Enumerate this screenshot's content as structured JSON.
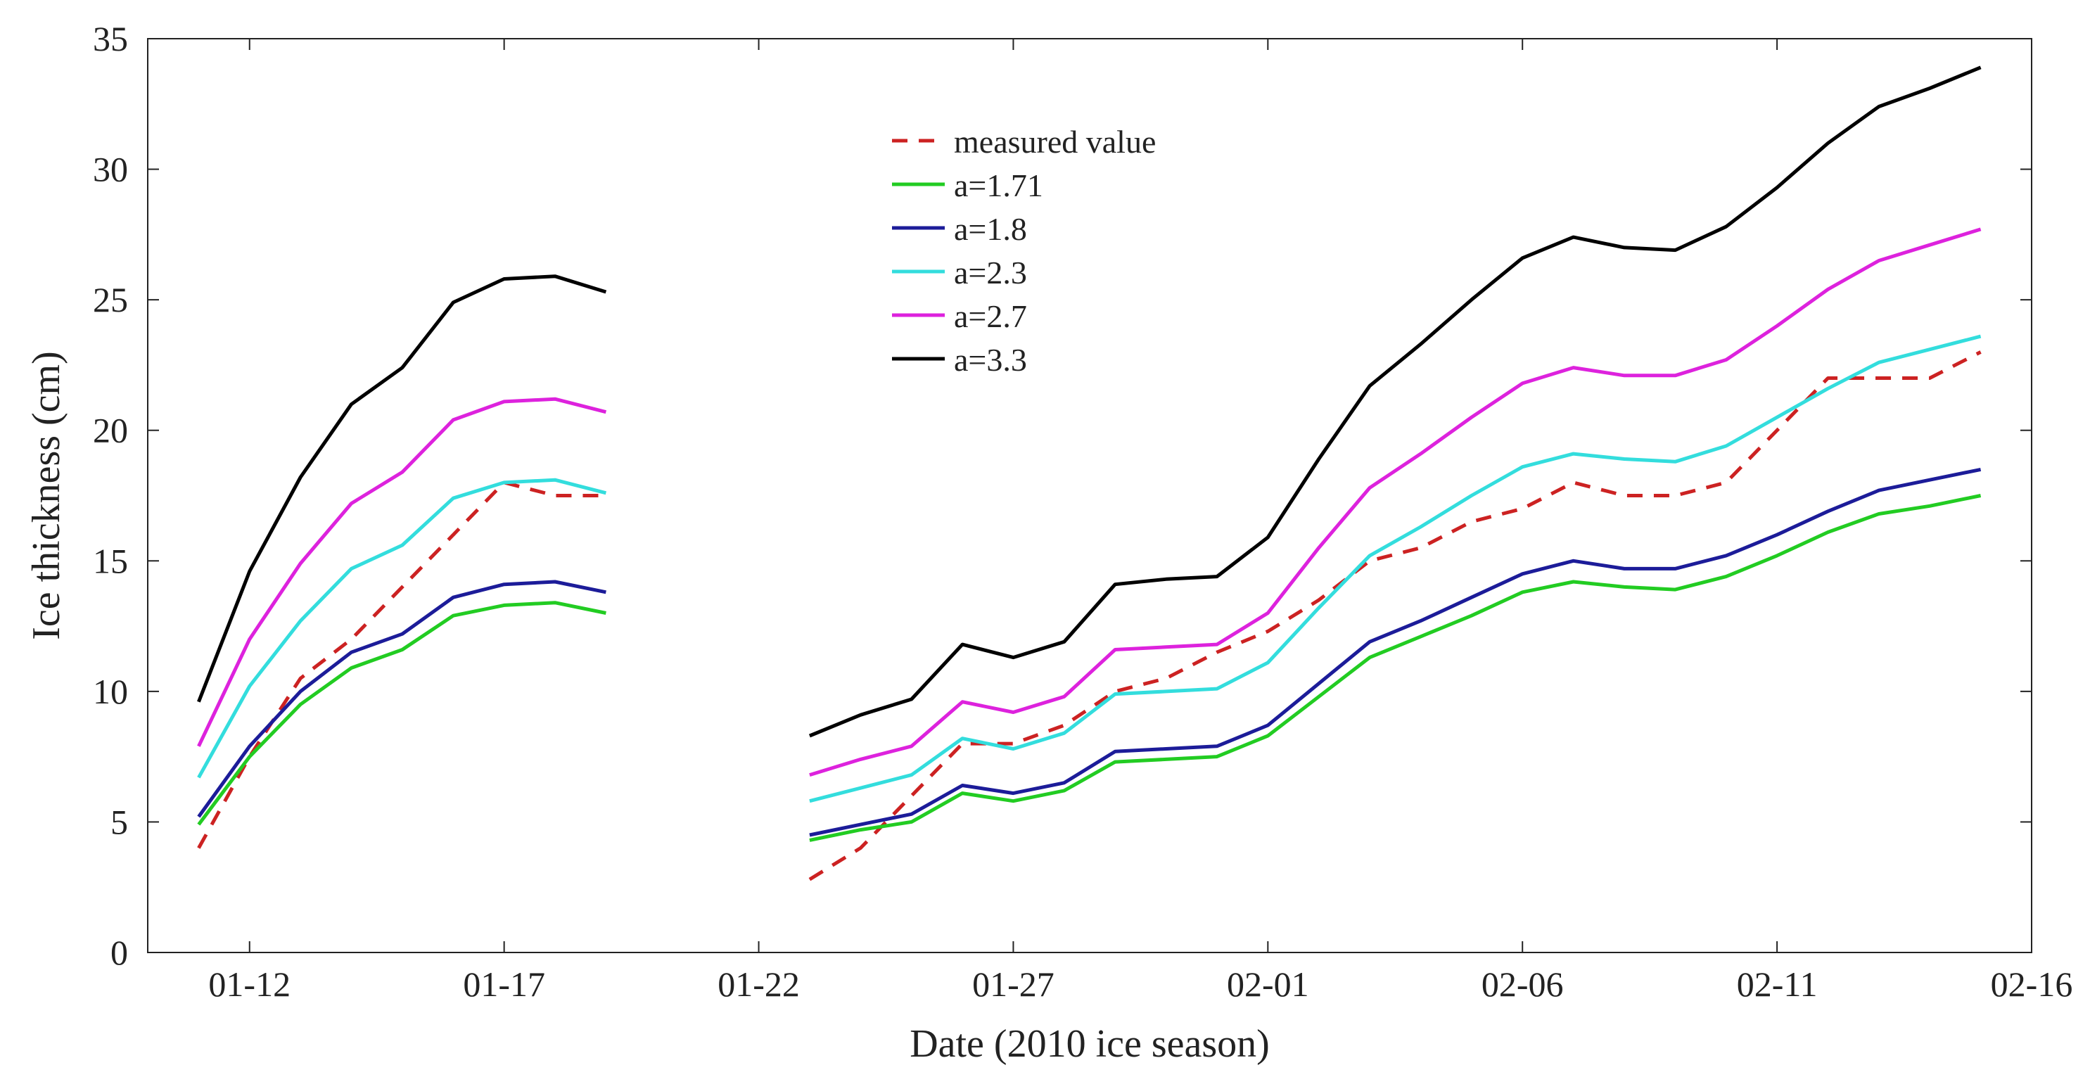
{
  "chart_data": {
    "type": "line",
    "xlabel": "Date (2010 ice season)",
    "ylabel": "Ice thickness (cm)",
    "x_ticks": [
      "01-12",
      "01-17",
      "01-22",
      "01-27",
      "02-01",
      "02-06",
      "02-11",
      "02-16"
    ],
    "y_ticks": [
      "0",
      "5",
      "10",
      "15",
      "20",
      "25",
      "30",
      "35"
    ],
    "xlim": [
      "2010-01-10",
      "2010-02-16"
    ],
    "ylim": [
      0,
      35
    ],
    "grid": false,
    "legend_position": "top-center",
    "series": [
      {
        "name": "measured value",
        "color": "#cc2222",
        "dashed": true,
        "segments": [
          {
            "x": [
              "2010-01-11",
              "2010-01-12",
              "2010-01-13",
              "2010-01-14",
              "2010-01-15",
              "2010-01-16",
              "2010-01-17",
              "2010-01-18",
              "2010-01-19"
            ],
            "y": [
              4.0,
              7.5,
              10.5,
              12.0,
              14.0,
              16.0,
              18.0,
              17.5,
              17.5
            ]
          },
          {
            "x": [
              "2010-01-23",
              "2010-01-24",
              "2010-01-25",
              "2010-01-26",
              "2010-01-27",
              "2010-01-28",
              "2010-01-29",
              "2010-01-30",
              "2010-01-31",
              "2010-02-01",
              "2010-02-02",
              "2010-02-03",
              "2010-02-04",
              "2010-02-05",
              "2010-02-06",
              "2010-02-07",
              "2010-02-08",
              "2010-02-09",
              "2010-02-10",
              "2010-02-11",
              "2010-02-12",
              "2010-02-13",
              "2010-02-14",
              "2010-02-15"
            ],
            "y": [
              2.8,
              4.0,
              6.0,
              8.0,
              8.0,
              8.7,
              10.0,
              10.5,
              11.5,
              12.3,
              13.5,
              15.0,
              15.5,
              16.5,
              17.0,
              18.0,
              17.5,
              17.5,
              18.0,
              20.0,
              22.0,
              22.0,
              22.0,
              23.0
            ]
          }
        ]
      },
      {
        "name": "a=1.71",
        "color": "#22cc22",
        "dashed": false,
        "segments": [
          {
            "x": [
              "2010-01-11",
              "2010-01-12",
              "2010-01-13",
              "2010-01-14",
              "2010-01-15",
              "2010-01-16",
              "2010-01-17",
              "2010-01-18",
              "2010-01-19"
            ],
            "y": [
              4.9,
              7.5,
              9.5,
              10.9,
              11.6,
              12.9,
              13.3,
              13.4,
              13.0
            ]
          },
          {
            "x": [
              "2010-01-23",
              "2010-01-24",
              "2010-01-25",
              "2010-01-26",
              "2010-01-27",
              "2010-01-28",
              "2010-01-29",
              "2010-01-30",
              "2010-01-31",
              "2010-02-01",
              "2010-02-02",
              "2010-02-03",
              "2010-02-04",
              "2010-02-05",
              "2010-02-06",
              "2010-02-07",
              "2010-02-08",
              "2010-02-09",
              "2010-02-10",
              "2010-02-11",
              "2010-02-12",
              "2010-02-13",
              "2010-02-14",
              "2010-02-15"
            ],
            "y": [
              4.3,
              4.7,
              5.0,
              6.1,
              5.8,
              6.2,
              7.3,
              7.4,
              7.5,
              8.3,
              9.8,
              11.3,
              12.1,
              12.9,
              13.8,
              14.2,
              14.0,
              13.9,
              14.4,
              15.2,
              16.1,
              16.8,
              17.1,
              17.5
            ]
          }
        ]
      },
      {
        "name": "a=1.8",
        "color": "#1c1c99",
        "dashed": false,
        "segments": [
          {
            "x": [
              "2010-01-11",
              "2010-01-12",
              "2010-01-13",
              "2010-01-14",
              "2010-01-15",
              "2010-01-16",
              "2010-01-17",
              "2010-01-18",
              "2010-01-19"
            ],
            "y": [
              5.2,
              7.9,
              10.0,
              11.5,
              12.2,
              13.6,
              14.1,
              14.2,
              13.8
            ]
          },
          {
            "x": [
              "2010-01-23",
              "2010-01-24",
              "2010-01-25",
              "2010-01-26",
              "2010-01-27",
              "2010-01-28",
              "2010-01-29",
              "2010-01-30",
              "2010-01-31",
              "2010-02-01",
              "2010-02-02",
              "2010-02-03",
              "2010-02-04",
              "2010-02-05",
              "2010-02-06",
              "2010-02-07",
              "2010-02-08",
              "2010-02-09",
              "2010-02-10",
              "2010-02-11",
              "2010-02-12",
              "2010-02-13",
              "2010-02-14",
              "2010-02-15"
            ],
            "y": [
              4.5,
              4.9,
              5.3,
              6.4,
              6.1,
              6.5,
              7.7,
              7.8,
              7.9,
              8.7,
              10.3,
              11.9,
              12.7,
              13.6,
              14.5,
              15.0,
              14.7,
              14.7,
              15.2,
              16.0,
              16.9,
              17.7,
              18.1,
              18.5
            ]
          }
        ]
      },
      {
        "name": "a=2.3",
        "color": "#33dddd",
        "dashed": false,
        "segments": [
          {
            "x": [
              "2010-01-11",
              "2010-01-12",
              "2010-01-13",
              "2010-01-14",
              "2010-01-15",
              "2010-01-16",
              "2010-01-17",
              "2010-01-18",
              "2010-01-19"
            ],
            "y": [
              6.7,
              10.2,
              12.7,
              14.7,
              15.6,
              17.4,
              18.0,
              18.1,
              17.6
            ]
          },
          {
            "x": [
              "2010-01-23",
              "2010-01-24",
              "2010-01-25",
              "2010-01-26",
              "2010-01-27",
              "2010-01-28",
              "2010-01-29",
              "2010-01-30",
              "2010-01-31",
              "2010-02-01",
              "2010-02-02",
              "2010-02-03",
              "2010-02-04",
              "2010-02-05",
              "2010-02-06",
              "2010-02-07",
              "2010-02-08",
              "2010-02-09",
              "2010-02-10",
              "2010-02-11",
              "2010-02-12",
              "2010-02-13",
              "2010-02-14",
              "2010-02-15"
            ],
            "y": [
              5.8,
              6.3,
              6.8,
              8.2,
              7.8,
              8.4,
              9.9,
              10.0,
              10.1,
              11.1,
              13.2,
              15.2,
              16.3,
              17.5,
              18.6,
              19.1,
              18.9,
              18.8,
              19.4,
              20.5,
              21.6,
              22.6,
              23.1,
              23.6
            ]
          }
        ]
      },
      {
        "name": "a=2.7",
        "color": "#dd22dd",
        "dashed": false,
        "segments": [
          {
            "x": [
              "2010-01-11",
              "2010-01-12",
              "2010-01-13",
              "2010-01-14",
              "2010-01-15",
              "2010-01-16",
              "2010-01-17",
              "2010-01-18",
              "2010-01-19"
            ],
            "y": [
              7.9,
              12.0,
              14.9,
              17.2,
              18.4,
              20.4,
              21.1,
              21.2,
              20.7
            ]
          },
          {
            "x": [
              "2010-01-23",
              "2010-01-24",
              "2010-01-25",
              "2010-01-26",
              "2010-01-27",
              "2010-01-28",
              "2010-01-29",
              "2010-01-30",
              "2010-01-31",
              "2010-02-01",
              "2010-02-02",
              "2010-02-03",
              "2010-02-04",
              "2010-02-05",
              "2010-02-06",
              "2010-02-07",
              "2010-02-08",
              "2010-02-09",
              "2010-02-10",
              "2010-02-11",
              "2010-02-12",
              "2010-02-13",
              "2010-02-14",
              "2010-02-15"
            ],
            "y": [
              6.8,
              7.4,
              7.9,
              9.6,
              9.2,
              9.8,
              11.6,
              11.7,
              11.8,
              13.0,
              15.5,
              17.8,
              19.1,
              20.5,
              21.8,
              22.4,
              22.1,
              22.1,
              22.7,
              24.0,
              25.4,
              26.5,
              27.1,
              27.7
            ]
          }
        ]
      },
      {
        "name": "a=3.3",
        "color": "#000000",
        "dashed": false,
        "segments": [
          {
            "x": [
              "2010-01-11",
              "2010-01-12",
              "2010-01-13",
              "2010-01-14",
              "2010-01-15",
              "2010-01-16",
              "2010-01-17",
              "2010-01-18",
              "2010-01-19"
            ],
            "y": [
              9.6,
              14.6,
              18.2,
              21.0,
              22.4,
              24.9,
              25.8,
              25.9,
              25.3
            ]
          },
          {
            "x": [
              "2010-01-23",
              "2010-01-24",
              "2010-01-25",
              "2010-01-26",
              "2010-01-27",
              "2010-01-28",
              "2010-01-29",
              "2010-01-30",
              "2010-01-31",
              "2010-02-01",
              "2010-02-02",
              "2010-02-03",
              "2010-02-04",
              "2010-02-05",
              "2010-02-06",
              "2010-02-07",
              "2010-02-08",
              "2010-02-09",
              "2010-02-10",
              "2010-02-11",
              "2010-02-12",
              "2010-02-13",
              "2010-02-14",
              "2010-02-15"
            ],
            "y": [
              8.3,
              9.1,
              9.7,
              11.8,
              11.3,
              11.9,
              14.1,
              14.3,
              14.4,
              15.9,
              18.9,
              21.7,
              23.3,
              25.0,
              26.6,
              27.4,
              27.0,
              26.9,
              27.8,
              29.3,
              31.0,
              32.4,
              33.1,
              33.9
            ]
          }
        ]
      }
    ]
  }
}
